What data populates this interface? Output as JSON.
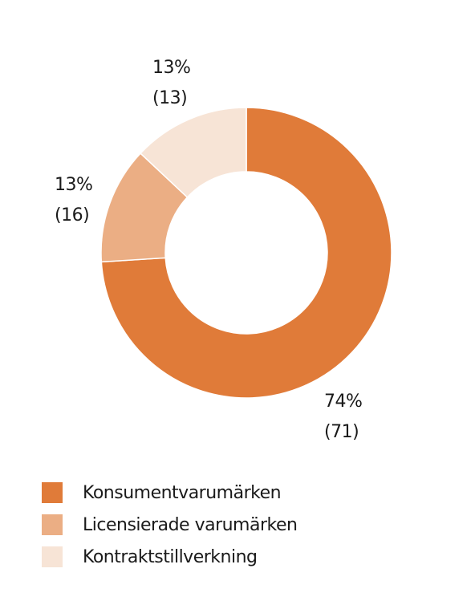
{
  "chart_data": {
    "type": "pie",
    "donut": true,
    "title": "",
    "legend_position": "bottom",
    "slices": [
      {
        "name": "Konsumentvarumärken",
        "value": 74,
        "previous": 71,
        "pct_label": "74%",
        "prev_label": "(71)",
        "color": "#E07B39"
      },
      {
        "name": "Licensierade varumärken",
        "value": 13,
        "previous": 16,
        "pct_label": "13%",
        "prev_label": "(16)",
        "color": "#EBAE84"
      },
      {
        "name": "Kontraktstillverkning",
        "value": 13,
        "previous": 13,
        "pct_label": "13%",
        "prev_label": "(13)",
        "color": "#F7E4D6"
      }
    ]
  }
}
